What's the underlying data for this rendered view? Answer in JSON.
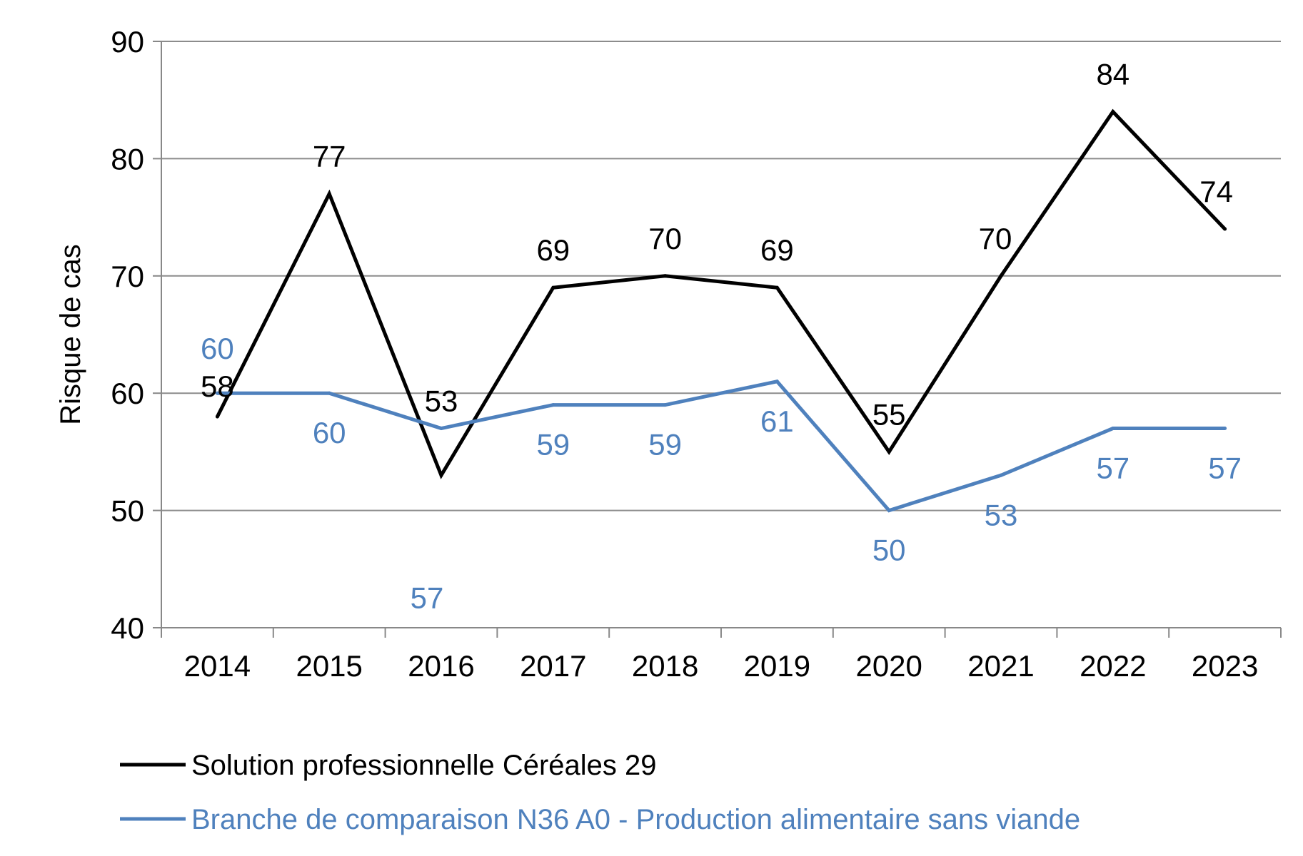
{
  "chart_data": {
    "type": "line",
    "categories": [
      "2014",
      "2015",
      "2016",
      "2017",
      "2018",
      "2019",
      "2020",
      "2021",
      "2022",
      "2023"
    ],
    "ylabel": "Risque de cas",
    "xlabel": "",
    "ylim": [
      40,
      90
    ],
    "yticks": [
      "40",
      "50",
      "60",
      "70",
      "80",
      "90"
    ],
    "grid": true,
    "legend_position": "bottom",
    "series": [
      {
        "name": "Solution professionnelle Céréales 29",
        "color": "#000000",
        "values": [
          58,
          77,
          53,
          69,
          70,
          69,
          55,
          70,
          84,
          74
        ],
        "labels": [
          "58",
          "77",
          "53",
          "69",
          "70",
          "69",
          "55",
          "70",
          "84",
          "74"
        ]
      },
      {
        "name": "Branche de comparaison N36 A0 - Production alimentaire sans viande",
        "color": "#4f81bd",
        "values": [
          60,
          60,
          57,
          59,
          59,
          61,
          50,
          53,
          57,
          57
        ],
        "labels": [
          "60",
          "60",
          "57",
          "59",
          "59",
          "61",
          "50",
          "53",
          "57",
          "57"
        ]
      }
    ]
  }
}
